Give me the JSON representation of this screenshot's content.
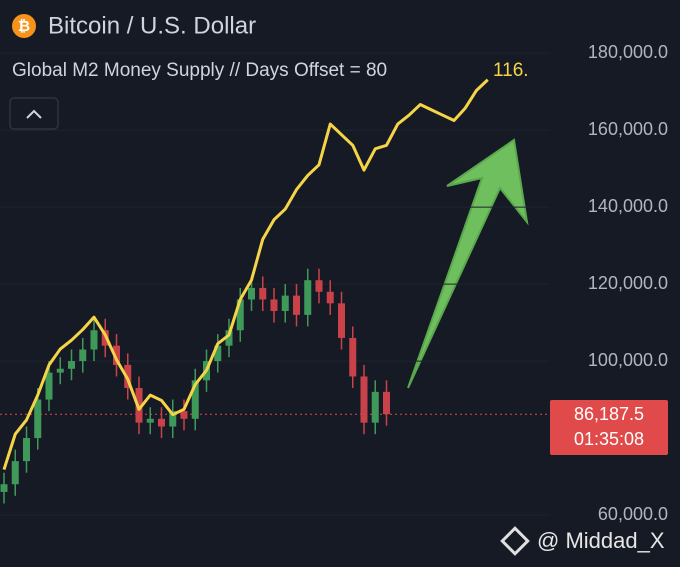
{
  "chart_data": {
    "type": "candlestick",
    "title": "Bitcoin / U.S. Dollar",
    "categories": [
      null,
      null,
      null,
      null,
      null,
      null,
      null,
      null,
      null,
      null,
      null,
      null,
      null,
      null,
      null,
      null,
      null,
      null,
      null,
      null,
      null,
      null,
      null,
      null,
      null,
      null,
      null,
      null,
      null,
      null,
      null,
      null,
      null,
      null,
      null,
      null,
      null,
      null,
      null,
      null,
      null,
      null,
      null,
      null
    ],
    "series": [
      {
        "type": "candlestick",
        "up_color": "#3f9a5a",
        "down_color": "#c9424a",
        "open": [
          66000,
          68000,
          74000,
          80000,
          90000,
          97000,
          98000,
          100000,
          103000,
          108000,
          104000,
          99000,
          93000,
          84000,
          85000,
          83000,
          87000,
          85000,
          95000,
          100000,
          104000,
          108000,
          116000,
          119000,
          116000,
          113000,
          117000,
          112000,
          121000,
          118000,
          115000,
          106000,
          96000,
          84000,
          92000,
          null,
          null,
          null,
          null,
          null,
          null,
          null,
          null,
          null
        ],
        "high": [
          71000,
          77000,
          83000,
          93000,
          100000,
          101000,
          103000,
          106000,
          111000,
          111000,
          107000,
          102000,
          96000,
          88000,
          88000,
          90000,
          90000,
          98000,
          103000,
          107000,
          111000,
          119000,
          122000,
          122000,
          119000,
          120000,
          120000,
          124000,
          124000,
          121000,
          118000,
          109000,
          99000,
          95000,
          95000,
          null,
          null,
          null,
          null,
          null,
          null,
          null,
          null,
          null
        ],
        "low": [
          63000,
          65000,
          71000,
          77000,
          87000,
          94000,
          95000,
          97000,
          100000,
          101000,
          96000,
          90000,
          81000,
          81000,
          80000,
          80000,
          82000,
          82000,
          92000,
          97000,
          101000,
          105000,
          113000,
          113000,
          110000,
          110000,
          109000,
          109000,
          115000,
          112000,
          103000,
          93000,
          81000,
          81000,
          83200,
          null,
          null,
          null,
          null,
          null,
          null,
          null,
          null,
          null
        ],
        "close": [
          68000,
          74000,
          80000,
          90000,
          97000,
          98000,
          100000,
          103000,
          108000,
          104000,
          99000,
          93000,
          84000,
          85000,
          83000,
          87000,
          85000,
          95000,
          100000,
          104000,
          108000,
          116000,
          119000,
          116000,
          113000,
          117000,
          112000,
          121000,
          118000,
          115000,
          106000,
          96000,
          84000,
          92000,
          86200,
          null,
          null,
          null,
          null,
          null,
          null,
          null,
          null,
          null
        ]
      },
      {
        "type": "line",
        "name": "Global M2 Money Supply // Days Offset = 80",
        "color": "#f5d547",
        "axis": "y2",
        "last_value_label": "116.",
        "values": [
          94.0,
          96.0,
          96.8,
          98.2,
          99.9,
          100.8,
          101.3,
          101.9,
          102.6,
          101.6,
          100.2,
          99.1,
          97.4,
          98.2,
          97.9,
          97.1,
          97.4,
          98.8,
          99.6,
          101.1,
          101.6,
          103.6,
          104.7,
          107.0,
          108.1,
          108.7,
          109.8,
          110.6,
          111.2,
          113.5,
          112.9,
          112.3,
          110.9,
          112.1,
          112.3,
          113.5,
          114.0,
          114.6,
          114.3,
          114.0,
          113.7,
          114.4,
          115.4,
          116.0
        ]
      }
    ],
    "ylim": [
      46500,
      193800
    ],
    "yticks": [
      {
        "value": 60000,
        "label": "60,000.0"
      },
      {
        "value": 100000,
        "label": "100,000.0"
      },
      {
        "value": 120000,
        "label": "120,000.0"
      },
      {
        "value": 140000,
        "label": "140,000.0"
      },
      {
        "value": 160000,
        "label": "160,000.0"
      },
      {
        "value": 180000,
        "label": "180,000.0"
      }
    ],
    "y2lim": [
      88.5,
      120.5
    ],
    "last_price": {
      "value": 86187.5,
      "label": "86,187.5"
    },
    "countdown": "01:35:08",
    "watermark": "@ Middad_X"
  }
}
